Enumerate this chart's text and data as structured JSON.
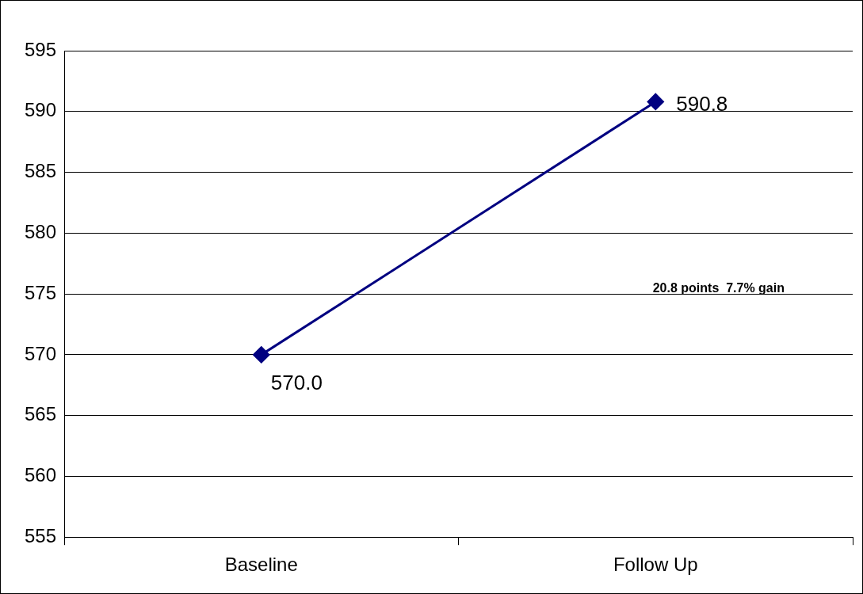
{
  "chart_data": {
    "type": "line",
    "categories": [
      "Baseline",
      "Follow Up"
    ],
    "series": [
      {
        "color": "#000080",
        "values": [
          570.0,
          590.8
        ],
        "value_labels": [
          "570.0",
          "590.8"
        ]
      }
    ],
    "ylim": [
      555,
      595
    ],
    "yticks": [
      555,
      560,
      565,
      570,
      575,
      580,
      585,
      590,
      595
    ],
    "grid": "y",
    "marker": "diamond",
    "line_style": "solid",
    "legend": false,
    "annotations": [
      "20.8 points  7.7% gain"
    ]
  }
}
